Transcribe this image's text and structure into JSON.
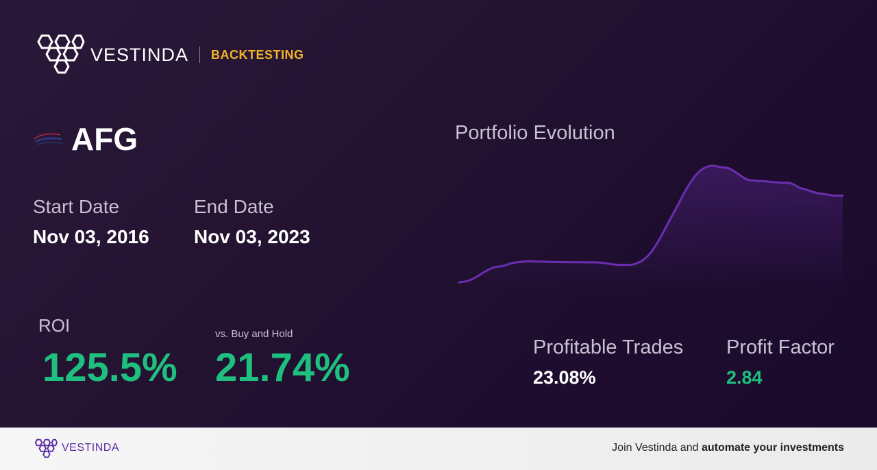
{
  "brand": {
    "name": "VESTINDA",
    "tag": "BACKTESTING"
  },
  "ticker": {
    "symbol": "AFG"
  },
  "dates": {
    "start_label": "Start Date",
    "start_value": "Nov 03, 2016",
    "end_label": "End Date",
    "end_value": "Nov 03, 2023"
  },
  "roi": {
    "label": "ROI",
    "value": "125.5%"
  },
  "vs": {
    "label": "vs. Buy and Hold",
    "value": "21.74%"
  },
  "chart": {
    "title": "Portfolio Evolution"
  },
  "metrics": {
    "profitable_label": "Profitable Trades",
    "profitable_value": "23.08%",
    "factor_label": "Profit Factor",
    "factor_value": "2.84"
  },
  "footer": {
    "brand": "VESTINDA",
    "cta_prefix": "Join Vestinda and ",
    "cta_bold": "automate your investments"
  },
  "colors": {
    "accent_green": "#1fbf7f",
    "accent_gold": "#f0b429",
    "line_purple": "#6a2fb0",
    "brand_purple": "#5b2aa3"
  },
  "chart_data": {
    "type": "area",
    "title": "Portfolio Evolution",
    "x": [
      0,
      1,
      2,
      3,
      4,
      5,
      6,
      7,
      8,
      9,
      10,
      11,
      12,
      13,
      14,
      15,
      16,
      17,
      18,
      19,
      20,
      21,
      22,
      23,
      24,
      25,
      26,
      27,
      28,
      29,
      30,
      31,
      32,
      33,
      34,
      35,
      36,
      37,
      38,
      39,
      40,
      41,
      42,
      43,
      44
    ],
    "series": [
      {
        "values": [
          0,
          1,
          4,
          8,
          11,
          12,
          14,
          15,
          15.5,
          15.3,
          15.2,
          15,
          14.9,
          14.8,
          14.8,
          14.7,
          14.6,
          13.8,
          13,
          12.8,
          13.2,
          16,
          22,
          32,
          44,
          56,
          68,
          78,
          84,
          86,
          85,
          84,
          80,
          76,
          75,
          74.6,
          74,
          73.5,
          73.2,
          70,
          68,
          66,
          65,
          64,
          64
        ]
      }
    ],
    "ylim": [
      0,
      86
    ],
    "grid": false,
    "legend": "none"
  }
}
